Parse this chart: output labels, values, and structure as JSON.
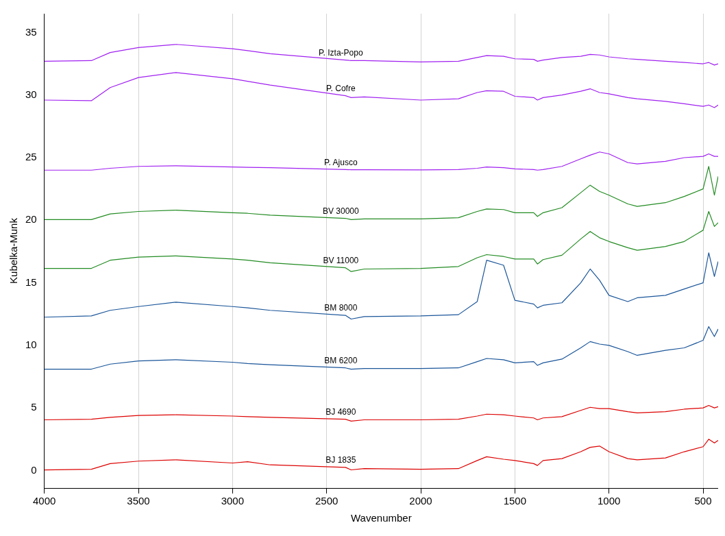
{
  "chart_data": {
    "type": "line",
    "xlabel": "Wavenumber",
    "ylabel": "Kubelka-Munk",
    "xlim": [
      4000,
      420
    ],
    "xticks": [
      4000,
      3500,
      3000,
      2500,
      2000,
      1500,
      1000,
      500
    ],
    "ylim": [
      -1.4,
      36.5
    ],
    "yticks": [
      0,
      5,
      10,
      15,
      20,
      25,
      30,
      35
    ],
    "grid": "x",
    "legend": false,
    "x": [
      4000,
      3750,
      3650,
      3500,
      3300,
      3000,
      2920,
      2800,
      2400,
      2370,
      2300,
      2000,
      1800,
      1700,
      1650,
      1560,
      1500,
      1400,
      1380,
      1350,
      1250,
      1150,
      1100,
      1050,
      1000,
      900,
      850,
      700,
      600,
      500,
      470,
      440,
      420
    ],
    "series": [
      {
        "name": "BJ 1835",
        "color": "#dd0000",
        "values": [
          0.05,
          0.1,
          0.55,
          0.75,
          0.85,
          0.6,
          0.7,
          0.45,
          0.25,
          0.05,
          0.15,
          0.1,
          0.15,
          0.8,
          1.1,
          0.9,
          0.8,
          0.55,
          0.4,
          0.8,
          0.95,
          1.5,
          1.85,
          1.95,
          1.5,
          0.95,
          0.85,
          1.0,
          1.5,
          1.9,
          2.5,
          2.2,
          2.4
        ]
      },
      {
        "name": "BJ 4690",
        "color": "#dd0000",
        "values": [
          4.05,
          4.1,
          4.25,
          4.4,
          4.45,
          4.35,
          4.3,
          4.25,
          4.1,
          3.95,
          4.05,
          4.05,
          4.1,
          4.35,
          4.5,
          4.45,
          4.35,
          4.2,
          4.05,
          4.2,
          4.3,
          4.8,
          5.05,
          4.95,
          4.95,
          4.7,
          4.6,
          4.7,
          4.9,
          5.0,
          5.2,
          5.0,
          5.1
        ]
      },
      {
        "name": "BM 6200",
        "color": "#1a5599",
        "values": [
          8.1,
          8.1,
          8.5,
          8.75,
          8.85,
          8.65,
          8.55,
          8.45,
          8.2,
          8.1,
          8.15,
          8.15,
          8.2,
          8.7,
          8.95,
          8.85,
          8.6,
          8.7,
          8.4,
          8.6,
          8.9,
          9.8,
          10.3,
          10.1,
          10.0,
          9.5,
          9.2,
          9.6,
          9.8,
          10.4,
          11.5,
          10.7,
          11.3
        ]
      },
      {
        "name": "BM 8000",
        "color": "#1a5599",
        "values": [
          12.25,
          12.35,
          12.8,
          13.1,
          13.45,
          13.1,
          13.0,
          12.8,
          12.4,
          12.1,
          12.3,
          12.35,
          12.45,
          13.5,
          16.8,
          16.4,
          13.6,
          13.3,
          13.0,
          13.2,
          13.4,
          15.0,
          16.1,
          15.2,
          14.0,
          13.5,
          13.8,
          14.0,
          14.5,
          15.0,
          17.4,
          15.5,
          16.7
        ]
      },
      {
        "name": "BV 11000",
        "color": "#228b22",
        "values": [
          16.15,
          16.15,
          16.8,
          17.05,
          17.15,
          16.9,
          16.8,
          16.6,
          16.2,
          15.9,
          16.1,
          16.15,
          16.3,
          17.0,
          17.25,
          17.1,
          16.9,
          16.9,
          16.5,
          16.85,
          17.2,
          18.5,
          19.1,
          18.6,
          18.3,
          17.8,
          17.6,
          17.9,
          18.3,
          19.2,
          20.7,
          19.5,
          19.8
        ]
      },
      {
        "name": "BV 30000",
        "color": "#228b22",
        "values": [
          20.05,
          20.05,
          20.5,
          20.7,
          20.8,
          20.6,
          20.55,
          20.4,
          20.15,
          20.05,
          20.1,
          20.1,
          20.2,
          20.7,
          20.9,
          20.85,
          20.6,
          20.6,
          20.3,
          20.6,
          21.0,
          22.2,
          22.8,
          22.3,
          22.0,
          21.3,
          21.1,
          21.4,
          21.9,
          22.5,
          24.3,
          22.0,
          23.5
        ]
      },
      {
        "name": "P. Ajusco",
        "color": "#a020f0",
        "values": [
          24.0,
          24.0,
          24.15,
          24.3,
          24.35,
          24.25,
          24.22,
          24.2,
          24.05,
          24.03,
          24.03,
          24.02,
          24.05,
          24.15,
          24.25,
          24.2,
          24.1,
          24.05,
          24.0,
          24.05,
          24.3,
          24.9,
          25.2,
          25.45,
          25.3,
          24.6,
          24.5,
          24.7,
          25.0,
          25.1,
          25.3,
          25.1,
          25.1
        ]
      },
      {
        "name": "P. Cofre",
        "color": "#a020f0",
        "values": [
          29.6,
          29.55,
          30.6,
          31.4,
          31.8,
          31.3,
          31.1,
          30.8,
          29.95,
          29.8,
          29.85,
          29.6,
          29.7,
          30.2,
          30.35,
          30.3,
          29.9,
          29.8,
          29.6,
          29.8,
          30.0,
          30.3,
          30.5,
          30.2,
          30.1,
          29.8,
          29.7,
          29.5,
          29.3,
          29.1,
          29.2,
          29.0,
          29.2
        ]
      },
      {
        "name": "P. Izta-Popo",
        "color": "#a020f0",
        "values": [
          32.7,
          32.75,
          33.4,
          33.8,
          34.05,
          33.7,
          33.55,
          33.3,
          32.8,
          32.75,
          32.75,
          32.65,
          32.7,
          33.0,
          33.15,
          33.1,
          32.9,
          32.85,
          32.7,
          32.8,
          33.0,
          33.1,
          33.25,
          33.2,
          33.05,
          32.9,
          32.85,
          32.7,
          32.6,
          32.5,
          32.6,
          32.4,
          32.5
        ]
      }
    ]
  }
}
